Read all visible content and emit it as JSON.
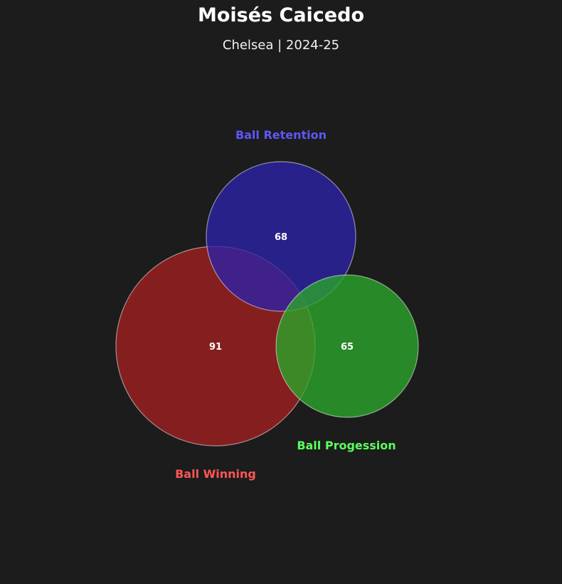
{
  "header": {
    "title": "Moisés Caicedo",
    "subtitle": "Chelsea | 2024-25"
  },
  "chart_data": {
    "type": "venn",
    "sets": [
      {
        "name": "Ball Winning",
        "value": 91,
        "color": "#a32020",
        "label_color": "#ff5555"
      },
      {
        "name": "Ball Retention",
        "value": 68,
        "color": "#2b23a8",
        "label_color": "#5d57ff"
      },
      {
        "name": "Ball Progession",
        "value": 65,
        "color": "#2aa82a",
        "label_color": "#5cff5c"
      }
    ],
    "background": "#1c1c1c"
  }
}
